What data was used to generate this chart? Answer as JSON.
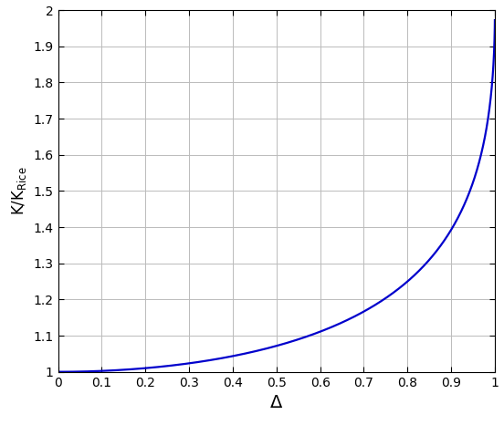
{
  "title": "",
  "xlabel": "Δ",
  "ylabel": "K/K$_{\\mathrm{Rice}}$",
  "xlim": [
    0,
    1
  ],
  "ylim": [
    1,
    2
  ],
  "xticks": [
    0,
    0.1,
    0.2,
    0.3,
    0.4,
    0.5,
    0.6,
    0.7,
    0.8,
    0.9,
    1
  ],
  "yticks": [
    1,
    1.1,
    1.2,
    1.3,
    1.4,
    1.5,
    1.6,
    1.7,
    1.8,
    1.9,
    2
  ],
  "line_color": "#0000CC",
  "line_width": 1.6,
  "grid_color": "#BBBBBB",
  "background_color": "#FFFFFF",
  "xlabel_fontsize": 14,
  "ylabel_fontsize": 12,
  "tick_fontsize": 10
}
